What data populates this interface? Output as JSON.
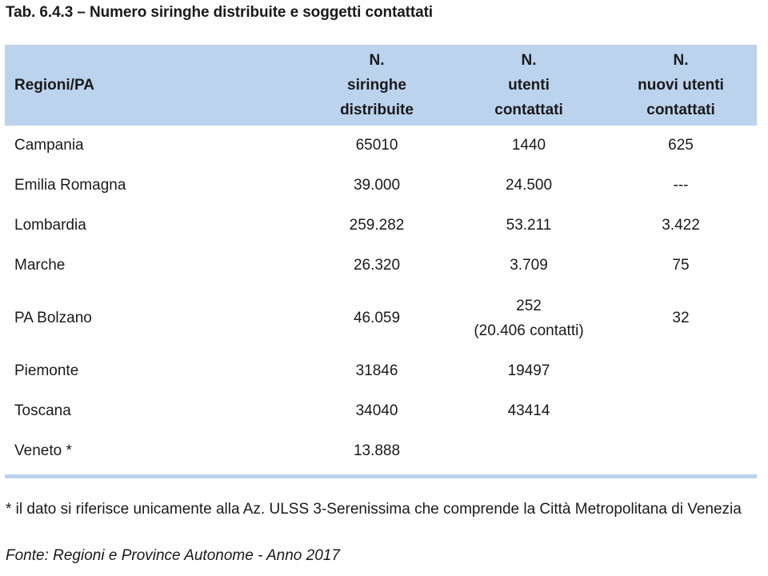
{
  "title": "Tab. 6.4.3 – Numero siringhe distribuite e soggetti contattati",
  "table": {
    "headers": {
      "region": "Regioni/PA",
      "syringes": [
        "N.",
        "siringhe",
        "distribuite"
      ],
      "users": [
        "N.",
        "utenti",
        "contattati"
      ],
      "new_users": [
        "N.",
        "nuovi utenti",
        "contattati"
      ]
    },
    "rows": [
      {
        "region": "Campania",
        "syringes": "65010",
        "users": "1440",
        "users_note": "",
        "new_users": "625"
      },
      {
        "region": "Emilia Romagna",
        "syringes": "39.000",
        "users": "24.500",
        "users_note": "",
        "new_users": "---"
      },
      {
        "region": "Lombardia",
        "syringes": "259.282",
        "users": "53.211",
        "users_note": "",
        "new_users": "3.422"
      },
      {
        "region": "Marche",
        "syringes": "26.320",
        "users": "3.709",
        "users_note": "",
        "new_users": "75"
      },
      {
        "region": "PA Bolzano",
        "syringes": "46.059",
        "users": "252",
        "users_note": "(20.406 contatti)",
        "new_users": "32"
      },
      {
        "region": "Piemonte",
        "syringes": "31846",
        "users": "19497",
        "users_note": "",
        "new_users": ""
      },
      {
        "region": "Toscana",
        "syringes": "34040",
        "users": "43414",
        "users_note": "",
        "new_users": ""
      },
      {
        "region": "Veneto *",
        "syringes": "13.888",
        "users": "",
        "users_note": "",
        "new_users": ""
      }
    ]
  },
  "note": "*  il dato si riferisce unicamente alla Az. ULSS 3-Serenissima che comprende la Città Metropolitana di Venezia",
  "source": "Fonte: Regioni e Province Autonome - Anno 2017",
  "colors": {
    "header_bg": "#bcd3ee",
    "text": "#1a1a1a"
  }
}
